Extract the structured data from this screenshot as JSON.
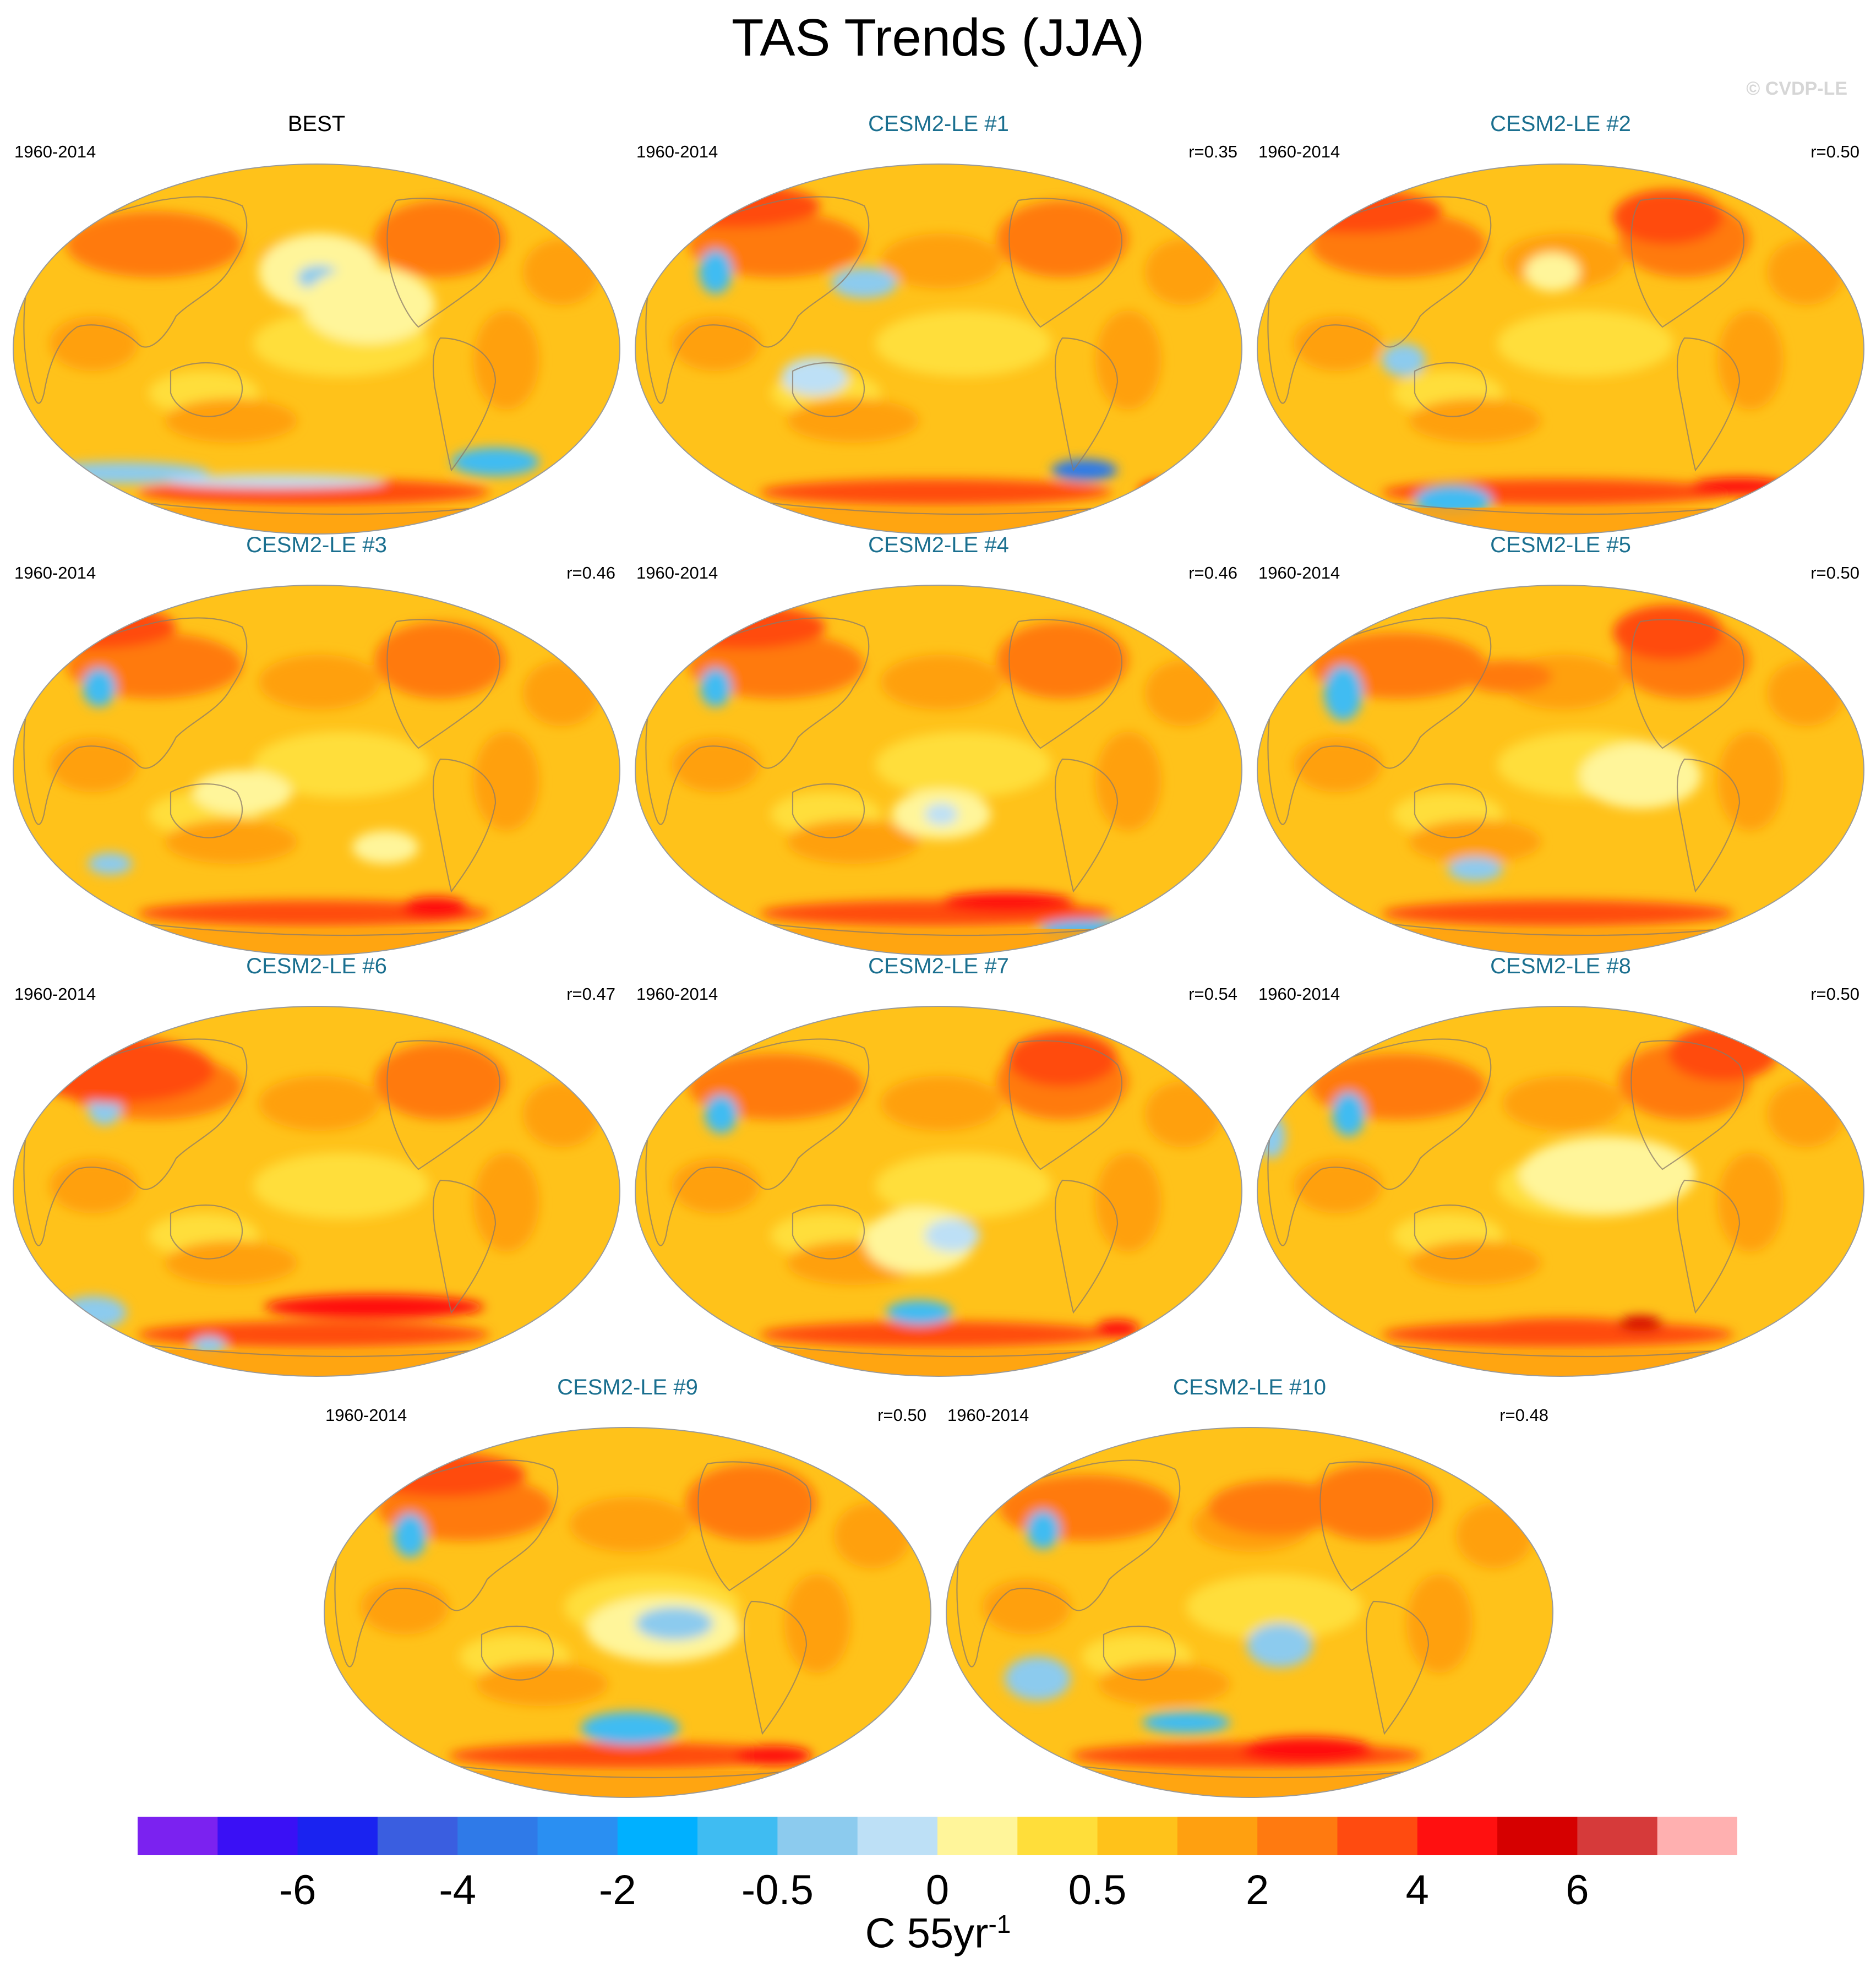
{
  "header": {
    "title": "TAS Trends (JJA)",
    "credit": "© CVDP-LE"
  },
  "panels": [
    {
      "label": "BEST",
      "kind": "obs",
      "period": "1960-2014",
      "r": "",
      "variant": 0
    },
    {
      "label": "CESM2-LE #1",
      "kind": "model",
      "period": "1960-2014",
      "r": "r=0.35",
      "variant": 1
    },
    {
      "label": "CESM2-LE #2",
      "kind": "model",
      "period": "1960-2014",
      "r": "r=0.50",
      "variant": 2
    },
    {
      "label": "CESM2-LE #3",
      "kind": "model",
      "period": "1960-2014",
      "r": "r=0.46",
      "variant": 3
    },
    {
      "label": "CESM2-LE #4",
      "kind": "model",
      "period": "1960-2014",
      "r": "r=0.46",
      "variant": 4
    },
    {
      "label": "CESM2-LE #5",
      "kind": "model",
      "period": "1960-2014",
      "r": "r=0.50",
      "variant": 5
    },
    {
      "label": "CESM2-LE #6",
      "kind": "model",
      "period": "1960-2014",
      "r": "r=0.47",
      "variant": 6
    },
    {
      "label": "CESM2-LE #7",
      "kind": "model",
      "period": "1960-2014",
      "r": "r=0.54",
      "variant": 7
    },
    {
      "label": "CESM2-LE #8",
      "kind": "model",
      "period": "1960-2014",
      "r": "r=0.50",
      "variant": 8
    },
    {
      "label": "CESM2-LE #9",
      "kind": "model",
      "period": "1960-2014",
      "r": "r=0.50",
      "variant": 9
    },
    {
      "label": "CESM2-LE #10",
      "kind": "model",
      "period": "1960-2014",
      "r": "r=0.48",
      "variant": 10
    }
  ],
  "colorbar": {
    "colors": [
      "#7b22f0",
      "#3a10f5",
      "#1a23f0",
      "#3a5ee0",
      "#2f7ae8",
      "#2a8ff2",
      "#00b0ff",
      "#3fbcf2",
      "#8ccbee",
      "#bde0f6",
      "#fff59a",
      "#ffde3a",
      "#ffc21a",
      "#ffa010",
      "#ff7a10",
      "#ff4b10",
      "#ff1010",
      "#d60000",
      "#d63a3a",
      "#ffb0b0"
    ],
    "tick_labels": [
      "-6",
      "-4",
      "-2",
      "-0.5",
      "0",
      "0.5",
      "2",
      "4",
      "6"
    ],
    "tick_boundaries": [
      2,
      4,
      6,
      8,
      10,
      12,
      14,
      16,
      18
    ],
    "units_main": "C 55yr",
    "units_exp": "-1"
  }
}
